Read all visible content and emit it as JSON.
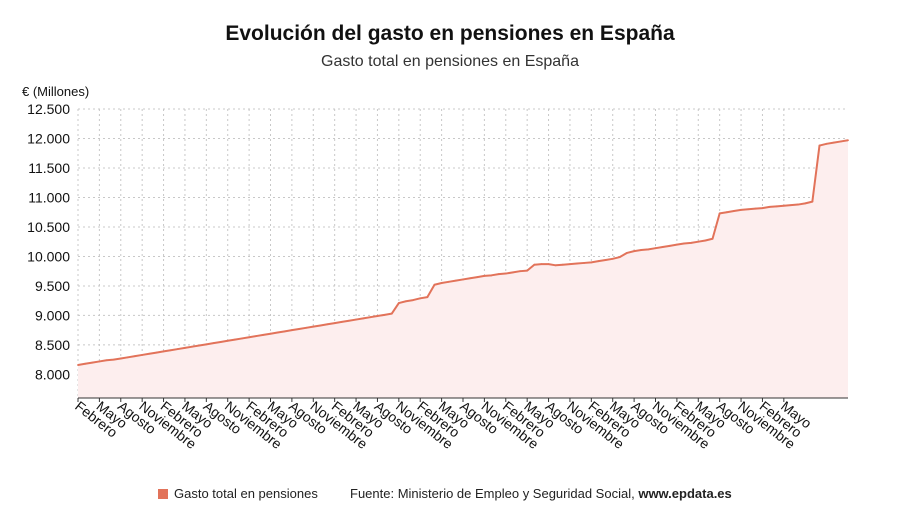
{
  "header": {
    "title": "Evolución del gasto en pensiones en España",
    "subtitle": "Gasto total en pensiones en España"
  },
  "footer": {
    "legend_label": "Gasto total en pensiones",
    "source_prefix": "Fuente: Ministerio de Empleo y Seguridad Social, ",
    "source_site": "www.epdata.es"
  },
  "colors": {
    "line": "#e2735a",
    "area": "#fdeeee",
    "grid": "#c8c8c8"
  },
  "chart_data": {
    "type": "area",
    "title": "Evolución del gasto en pensiones en España",
    "subtitle": "Gasto total en pensiones en España",
    "ylabel": "€ (Millones)",
    "xlabel": "",
    "ylim": [
      7600,
      12500
    ],
    "yticks": [
      8000,
      8500,
      9000,
      9500,
      10000,
      10500,
      11000,
      11500,
      12000,
      12500
    ],
    "ytick_labels": [
      "8.000",
      "8.500",
      "9.000",
      "9.500",
      "10.000",
      "10.500",
      "11.000",
      "11.500",
      "12.000",
      "12.500"
    ],
    "grid": true,
    "legend_position": "bottom",
    "x_tick_labels": [
      "Febrero",
      "Mayo",
      "Agosto",
      "Noviembre",
      "Febrero",
      "Mayo",
      "Agosto",
      "Noviembre",
      "Febrero",
      "Mayo",
      "Agosto",
      "Noviembre",
      "Febrero",
      "Mayo",
      "Agosto",
      "Noviembre",
      "Febrero",
      "Mayo",
      "Agosto",
      "Noviembre",
      "Febrero",
      "Mayo",
      "Agosto",
      "Noviembre",
      "Febrero",
      "Mayo",
      "Agosto",
      "Noviembre",
      "Febrero",
      "Mayo",
      "Agosto",
      "Noviembre",
      "Febrero",
      "Mayo"
    ],
    "series": [
      {
        "name": "Gasto total en pensiones",
        "values": [
          8160,
          8180,
          8200,
          8220,
          8240,
          8250,
          8270,
          8290,
          8310,
          8330,
          8350,
          8370,
          8390,
          8410,
          8430,
          8450,
          8470,
          8490,
          8510,
          8530,
          8550,
          8570,
          8590,
          8610,
          8630,
          8650,
          8670,
          8690,
          8710,
          8730,
          8750,
          8770,
          8790,
          8810,
          8830,
          8850,
          8870,
          8890,
          8910,
          8930,
          8950,
          8970,
          8990,
          9010,
          9030,
          9210,
          9240,
          9260,
          9290,
          9310,
          9520,
          9550,
          9570,
          9590,
          9610,
          9630,
          9650,
          9670,
          9680,
          9700,
          9710,
          9730,
          9750,
          9760,
          9860,
          9870,
          9870,
          9850,
          9860,
          9870,
          9880,
          9890,
          9900,
          9920,
          9940,
          9960,
          9990,
          10060,
          10090,
          10110,
          10120,
          10140,
          10160,
          10180,
          10200,
          10220,
          10230,
          10250,
          10270,
          10300,
          10730,
          10750,
          10770,
          10790,
          10800,
          10810,
          10820,
          10840,
          10850,
          10860,
          10870,
          10880,
          10900,
          10930,
          11880,
          11910,
          11930,
          11950,
          11970
        ]
      }
    ]
  }
}
